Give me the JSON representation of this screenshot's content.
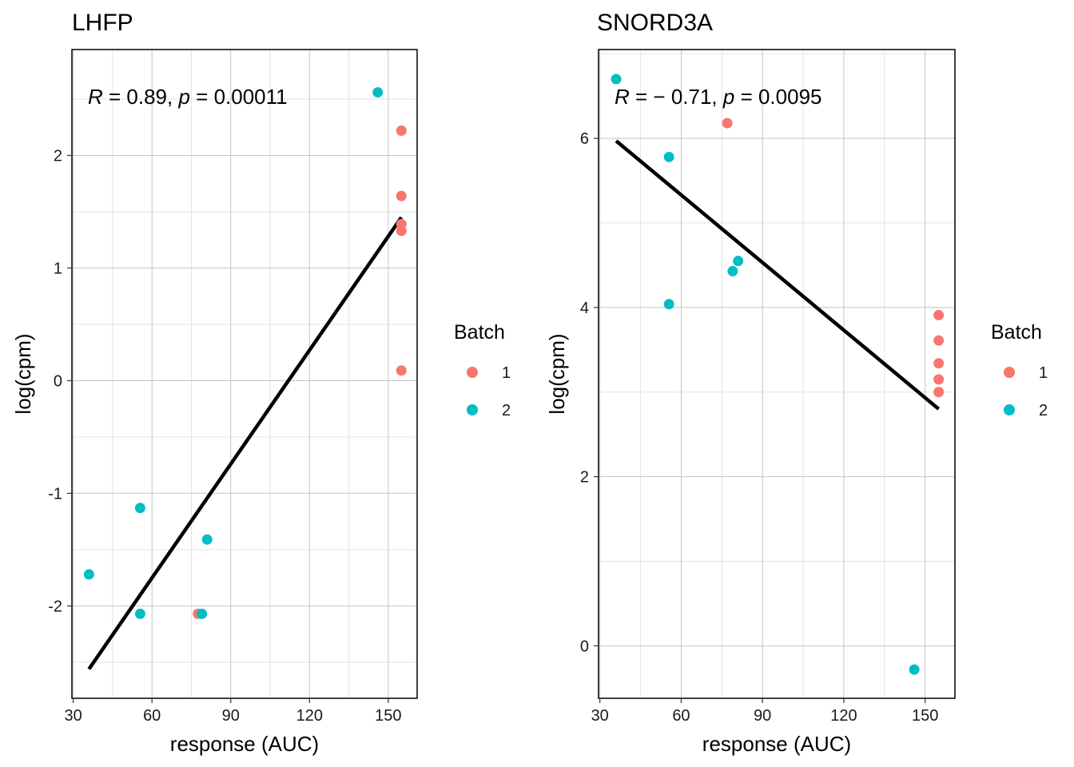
{
  "chart_data": [
    {
      "type": "scatter",
      "title": "LHFP",
      "xlabel": "response (AUC)",
      "ylabel": "log(cpm)",
      "xlim": [
        29.5,
        161
      ],
      "ylim": [
        -2.82,
        2.94
      ],
      "x_ticks": [
        30,
        60,
        90,
        120,
        150
      ],
      "y_ticks": [
        -2,
        -1,
        0,
        1,
        2
      ],
      "grid": true,
      "annotation": {
        "r_label": "R",
        "r_text": " = 0.89, ",
        "p_label": "p",
        "p_text": " = 0.00011"
      },
      "fit_line": {
        "x": [
          36,
          155
        ],
        "y": [
          -2.56,
          1.45
        ]
      },
      "series": [
        {
          "name": "1",
          "x": [
            155,
            155,
            155,
            155,
            155,
            77.5
          ],
          "y": [
            2.22,
            1.64,
            1.39,
            1.33,
            0.09,
            -2.07
          ]
        },
        {
          "name": "2",
          "x": [
            146,
            36,
            55.5,
            55.5,
            81,
            79
          ],
          "y": [
            2.56,
            -1.72,
            -1.13,
            -2.07,
            -1.41,
            -2.07
          ]
        }
      ]
    },
    {
      "type": "scatter",
      "title": "SNORD3A",
      "xlabel": "response (AUC)",
      "ylabel": "log(cpm)",
      "xlim": [
        29.5,
        161
      ],
      "ylim": [
        -0.62,
        7.05
      ],
      "x_ticks": [
        30,
        60,
        90,
        120,
        150
      ],
      "y_ticks": [
        0,
        2,
        4,
        6
      ],
      "grid": true,
      "annotation": {
        "r_label": "R",
        "r_text": " = − 0.71, ",
        "p_label": "p",
        "p_text": " = 0.0095"
      },
      "fit_line": {
        "x": [
          36,
          155
        ],
        "y": [
          5.97,
          2.8
        ]
      },
      "series": [
        {
          "name": "1",
          "x": [
            77,
            155,
            155,
            155,
            155,
            155
          ],
          "y": [
            6.18,
            3.91,
            3.61,
            3.34,
            3.15,
            3.0
          ]
        },
        {
          "name": "2",
          "x": [
            36,
            55.5,
            55.5,
            81,
            79,
            146
          ],
          "y": [
            6.7,
            5.78,
            4.04,
            4.55,
            4.43,
            -0.28
          ]
        }
      ]
    }
  ],
  "legend": {
    "title": "Batch",
    "items": [
      {
        "label": "1",
        "color": "#F8766D"
      },
      {
        "label": "2",
        "color": "#00BFC4"
      }
    ]
  },
  "colors": {
    "batch_1": "#F8766D",
    "batch_2": "#00BFC4",
    "fit_line": "#000000"
  }
}
